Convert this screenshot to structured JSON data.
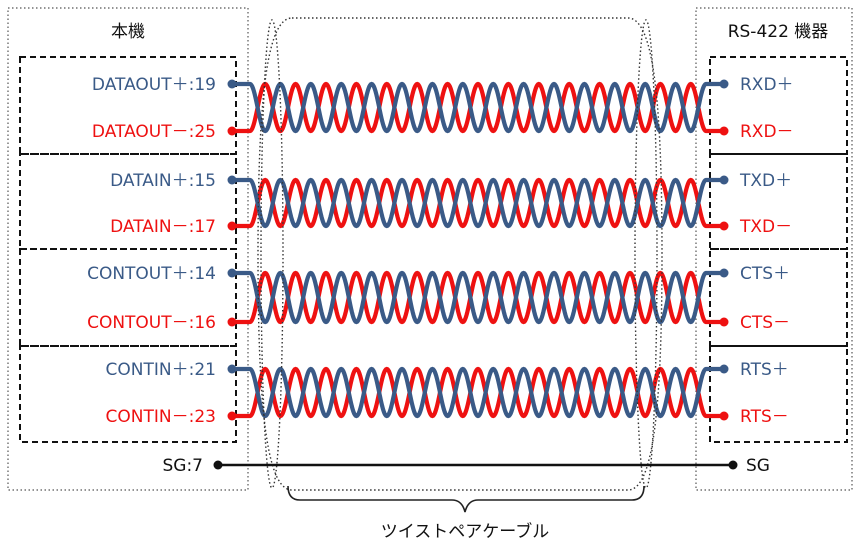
{
  "host_device": {
    "title": "本機"
  },
  "remote_device": {
    "title": "RS-422 機器"
  },
  "colors": {
    "positive": "#3a5a87",
    "negative": "#ee1111",
    "ground": "#111111"
  },
  "pairs": [
    {
      "host_pos": "DATAOUT＋:19",
      "host_neg": "DATAOUT－:25",
      "remote_pos": "RXD＋",
      "remote_neg": "RXD－"
    },
    {
      "host_pos": "DATAIN＋:15",
      "host_neg": "DATAIN－:17",
      "remote_pos": "TXD＋",
      "remote_neg": "TXD－"
    },
    {
      "host_pos": "CONTOUT＋:14",
      "host_neg": "CONTOUT－:16",
      "remote_pos": "CTS＋",
      "remote_neg": "CTS－"
    },
    {
      "host_pos": "CONTIN＋:21",
      "host_neg": "CONTIN－:23",
      "remote_pos": "RTS＋",
      "remote_neg": "RTS－"
    }
  ],
  "ground": {
    "host": "SG:7",
    "remote": "SG"
  },
  "cable": {
    "label": "ツイストペアケーブル"
  }
}
